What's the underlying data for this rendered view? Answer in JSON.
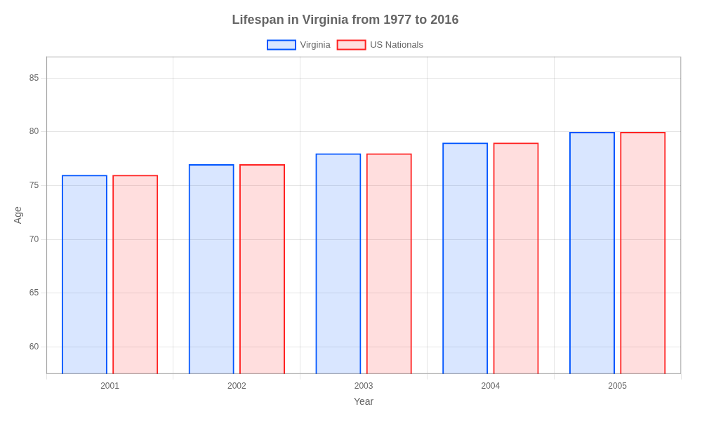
{
  "chart_data": {
    "type": "bar",
    "title": "Lifespan in Virginia from 1977 to 2016",
    "xlabel": "Year",
    "ylabel": "Age",
    "categories": [
      "2001",
      "2002",
      "2003",
      "2004",
      "2005"
    ],
    "series": [
      {
        "name": "Virginia",
        "color": "#0055ff",
        "values": [
          76.0,
          77.0,
          78.0,
          79.0,
          80.0
        ]
      },
      {
        "name": "US Nationals",
        "color": "#ff2222",
        "values": [
          76.0,
          77.0,
          78.0,
          79.0,
          80.0
        ]
      }
    ],
    "ylim": [
      57.5,
      87
    ],
    "yticks": [
      60,
      65,
      70,
      75,
      80,
      85
    ],
    "grid": true,
    "legend": "top"
  }
}
